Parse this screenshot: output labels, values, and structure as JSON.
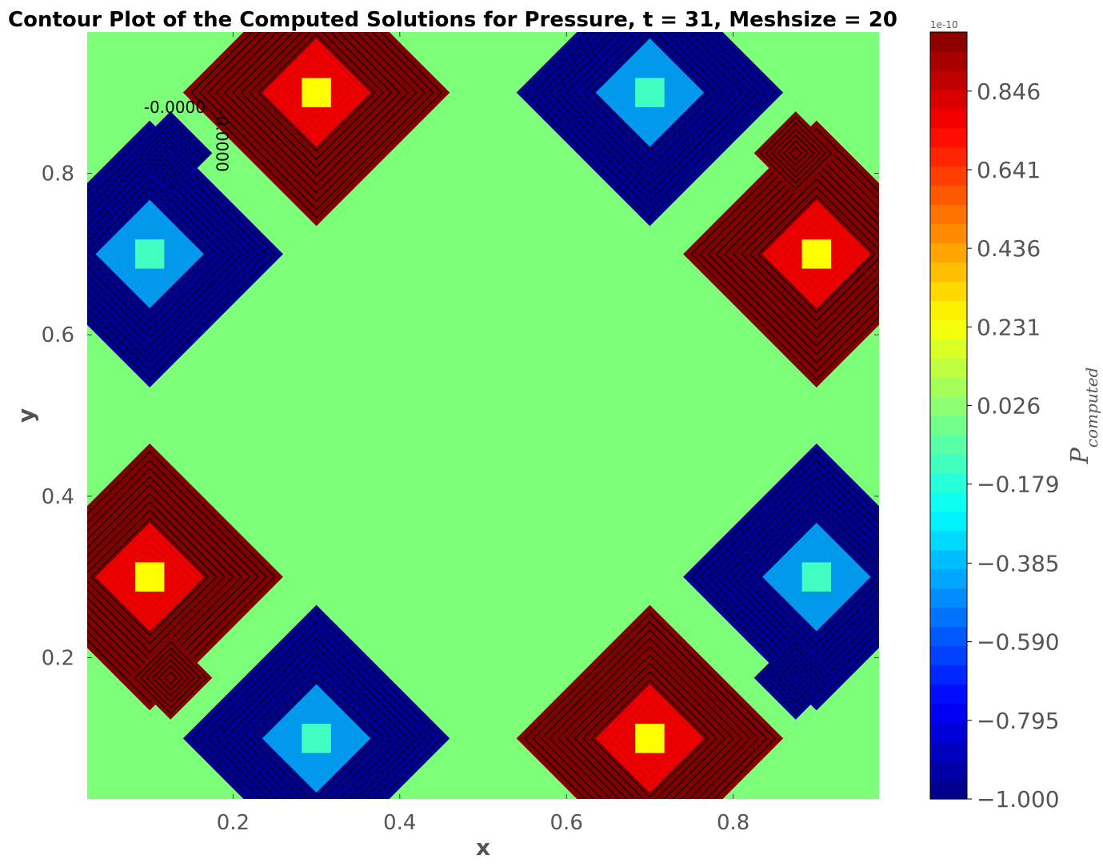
{
  "chart_data": {
    "type": "contour",
    "title": "Contour Plot of the Computed Solutions for Pressure, t = 31, Meshsize = 20",
    "xlabel": "x",
    "ylabel": "y",
    "xlim": [
      0.025,
      0.975
    ],
    "ylim": [
      0.025,
      0.975
    ],
    "xticks": [
      0.2,
      0.4,
      0.6,
      0.8
    ],
    "xtick_labels": [
      "0.2",
      "0.4",
      "0.6",
      "0.8"
    ],
    "yticks": [
      0.2,
      0.4,
      0.6,
      0.8
    ],
    "ytick_labels": [
      "0.2",
      "0.4",
      "0.6",
      "0.8"
    ],
    "colormap": "jet",
    "background_value": 0.0,
    "colorbar": {
      "label": "P_computed",
      "label_main": "P",
      "label_sub": "computed",
      "offset_text": "1e-10",
      "range": [
        -1.0,
        1.0
      ],
      "levels": 40,
      "ticks": [
        -1.0,
        -0.795,
        -0.59,
        -0.385,
        -0.179,
        0.026,
        0.231,
        0.436,
        0.641,
        0.846
      ],
      "tick_labels": [
        "−1.000",
        "−0.795",
        "−0.590",
        "−0.385",
        "−0.179",
        "0.026",
        "0.231",
        "0.436",
        "0.641",
        "0.846"
      ]
    },
    "contour_labels": [
      {
        "text": "-0.0000",
        "x": 0.13,
        "y": 0.875,
        "rotation": 0
      },
      {
        "text": "-0.0000",
        "x": 0.18,
        "y": 0.84,
        "rotation": 90
      }
    ],
    "features": [
      {
        "kind": "max",
        "x": 0.3,
        "y": 0.9
      },
      {
        "kind": "max",
        "x": 0.9,
        "y": 0.7
      },
      {
        "kind": "max",
        "x": 0.1,
        "y": 0.3
      },
      {
        "kind": "max",
        "x": 0.7,
        "y": 0.1
      },
      {
        "kind": "min",
        "x": 0.7,
        "y": 0.9
      },
      {
        "kind": "min",
        "x": 0.1,
        "y": 0.7
      },
      {
        "kind": "min",
        "x": 0.9,
        "y": 0.3
      },
      {
        "kind": "min",
        "x": 0.3,
        "y": 0.1
      },
      {
        "kind": "satmin",
        "x": 0.125,
        "y": 0.825
      },
      {
        "kind": "satmin",
        "x": 0.875,
        "y": 0.175
      },
      {
        "kind": "satmax",
        "x": 0.875,
        "y": 0.825
      },
      {
        "kind": "satmax",
        "x": 0.125,
        "y": 0.175
      }
    ]
  }
}
